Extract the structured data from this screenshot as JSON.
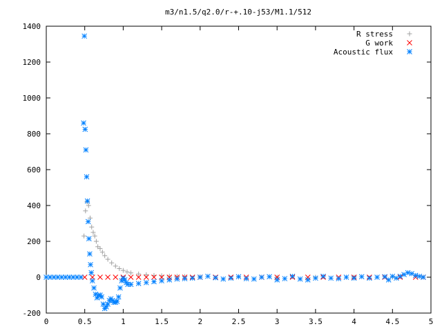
{
  "chart_data": {
    "type": "scatter",
    "title": "m3/n1.5/q2.0/r-+.10-j53/M1.1/512",
    "xlabel": "",
    "ylabel": "",
    "xlim": [
      0,
      5
    ],
    "ylim": [
      -200,
      1400
    ],
    "x_ticks": [
      "0",
      "0.5",
      "1",
      "1.5",
      "2",
      "2.5",
      "3",
      "3.5",
      "4",
      "4.5",
      "5"
    ],
    "y_ticks": [
      "-200",
      "0",
      "200",
      "400",
      "600",
      "800",
      "1000",
      "1200",
      "1400"
    ],
    "legend_position": "top-right",
    "grid": false,
    "series": [
      {
        "name": "R stress",
        "marker": "plus",
        "color": "#a0a0a0",
        "points": [
          [
            0.49,
            230
          ],
          [
            0.51,
            370
          ],
          [
            0.53,
            420
          ],
          [
            0.55,
            400
          ],
          [
            0.57,
            330
          ],
          [
            0.59,
            280
          ],
          [
            0.61,
            250
          ],
          [
            0.63,
            230
          ],
          [
            0.65,
            200
          ],
          [
            0.67,
            170
          ],
          [
            0.7,
            160
          ],
          [
            0.73,
            140
          ],
          [
            0.76,
            120
          ],
          [
            0.8,
            100
          ],
          [
            0.85,
            80
          ],
          [
            0.9,
            62
          ],
          [
            0.95,
            48
          ],
          [
            1.0,
            38
          ],
          [
            1.05,
            30
          ],
          [
            1.1,
            24
          ],
          [
            1.2,
            18
          ],
          [
            1.3,
            14
          ],
          [
            1.4,
            10
          ],
          [
            1.5,
            8
          ],
          [
            1.6,
            6
          ],
          [
            1.7,
            5
          ],
          [
            1.8,
            4
          ],
          [
            2.0,
            2
          ],
          [
            2.5,
            1
          ],
          [
            3.0,
            0
          ],
          [
            3.5,
            0
          ],
          [
            4.0,
            0
          ],
          [
            4.5,
            0
          ],
          [
            4.9,
            0
          ]
        ]
      },
      {
        "name": "G work",
        "marker": "cross",
        "color": "#ff0000",
        "points": [
          [
            0.5,
            0
          ],
          [
            0.6,
            0
          ],
          [
            0.7,
            0
          ],
          [
            0.8,
            0
          ],
          [
            0.9,
            0
          ],
          [
            1.0,
            0
          ],
          [
            1.1,
            0
          ],
          [
            1.2,
            0
          ],
          [
            1.3,
            0
          ],
          [
            1.4,
            0
          ],
          [
            1.5,
            0
          ],
          [
            1.6,
            0
          ],
          [
            1.7,
            0
          ],
          [
            1.8,
            0
          ],
          [
            1.9,
            0
          ],
          [
            2.0,
            0
          ],
          [
            2.2,
            0
          ],
          [
            2.4,
            0
          ],
          [
            2.6,
            0
          ],
          [
            2.8,
            0
          ],
          [
            3.0,
            0
          ],
          [
            3.2,
            0
          ],
          [
            3.4,
            0
          ],
          [
            3.6,
            0
          ],
          [
            3.8,
            0
          ],
          [
            4.0,
            0
          ],
          [
            4.2,
            0
          ],
          [
            4.4,
            0
          ],
          [
            4.6,
            0
          ],
          [
            4.8,
            0
          ],
          [
            4.9,
            0
          ]
        ]
      },
      {
        "name": "Acoustic flux",
        "marker": "star",
        "color": "#0080ff",
        "points": [
          [
            0.0,
            0
          ],
          [
            0.05,
            0
          ],
          [
            0.1,
            0
          ],
          [
            0.15,
            0
          ],
          [
            0.2,
            0
          ],
          [
            0.25,
            0
          ],
          [
            0.3,
            0
          ],
          [
            0.35,
            0
          ],
          [
            0.4,
            0
          ],
          [
            0.45,
            0
          ],
          [
            0.485,
            860
          ],
          [
            0.495,
            1345
          ],
          [
            0.505,
            825
          ],
          [
            0.515,
            710
          ],
          [
            0.525,
            560
          ],
          [
            0.535,
            425
          ],
          [
            0.545,
            310
          ],
          [
            0.555,
            215
          ],
          [
            0.565,
            130
          ],
          [
            0.575,
            70
          ],
          [
            0.585,
            25
          ],
          [
            0.6,
            -20
          ],
          [
            0.62,
            -60
          ],
          [
            0.64,
            -95
          ],
          [
            0.66,
            -115
          ],
          [
            0.68,
            -100
          ],
          [
            0.7,
            -100
          ],
          [
            0.72,
            -110
          ],
          [
            0.74,
            -150
          ],
          [
            0.76,
            -175
          ],
          [
            0.78,
            -165
          ],
          [
            0.8,
            -150
          ],
          [
            0.82,
            -130
          ],
          [
            0.84,
            -120
          ],
          [
            0.86,
            -130
          ],
          [
            0.88,
            -140
          ],
          [
            0.9,
            -140
          ],
          [
            0.92,
            -135
          ],
          [
            0.94,
            -110
          ],
          [
            0.96,
            -60
          ],
          [
            0.98,
            -20
          ],
          [
            1.0,
            -5
          ],
          [
            1.02,
            -15
          ],
          [
            1.04,
            -30
          ],
          [
            1.06,
            -40
          ],
          [
            1.1,
            -40
          ],
          [
            1.2,
            -35
          ],
          [
            1.3,
            -30
          ],
          [
            1.4,
            -25
          ],
          [
            1.5,
            -20
          ],
          [
            1.6,
            -15
          ],
          [
            1.7,
            -10
          ],
          [
            1.8,
            -8
          ],
          [
            1.9,
            -5
          ],
          [
            2.0,
            0
          ],
          [
            2.1,
            5
          ],
          [
            2.2,
            -3
          ],
          [
            2.3,
            -10
          ],
          [
            2.4,
            -5
          ],
          [
            2.5,
            3
          ],
          [
            2.6,
            -8
          ],
          [
            2.7,
            -10
          ],
          [
            2.8,
            0
          ],
          [
            2.9,
            3
          ],
          [
            3.0,
            -15
          ],
          [
            3.1,
            -8
          ],
          [
            3.2,
            5
          ],
          [
            3.3,
            -10
          ],
          [
            3.4,
            -15
          ],
          [
            3.5,
            -5
          ],
          [
            3.6,
            5
          ],
          [
            3.7,
            -5
          ],
          [
            3.8,
            -8
          ],
          [
            3.9,
            0
          ],
          [
            4.0,
            -5
          ],
          [
            4.1,
            3
          ],
          [
            4.2,
            -5
          ],
          [
            4.3,
            0
          ],
          [
            4.4,
            3
          ],
          [
            4.45,
            -15
          ],
          [
            4.5,
            5
          ],
          [
            4.55,
            -5
          ],
          [
            4.6,
            5
          ],
          [
            4.65,
            15
          ],
          [
            4.7,
            25
          ],
          [
            4.75,
            20
          ],
          [
            4.8,
            10
          ],
          [
            4.85,
            5
          ],
          [
            4.9,
            0
          ]
        ]
      }
    ]
  }
}
